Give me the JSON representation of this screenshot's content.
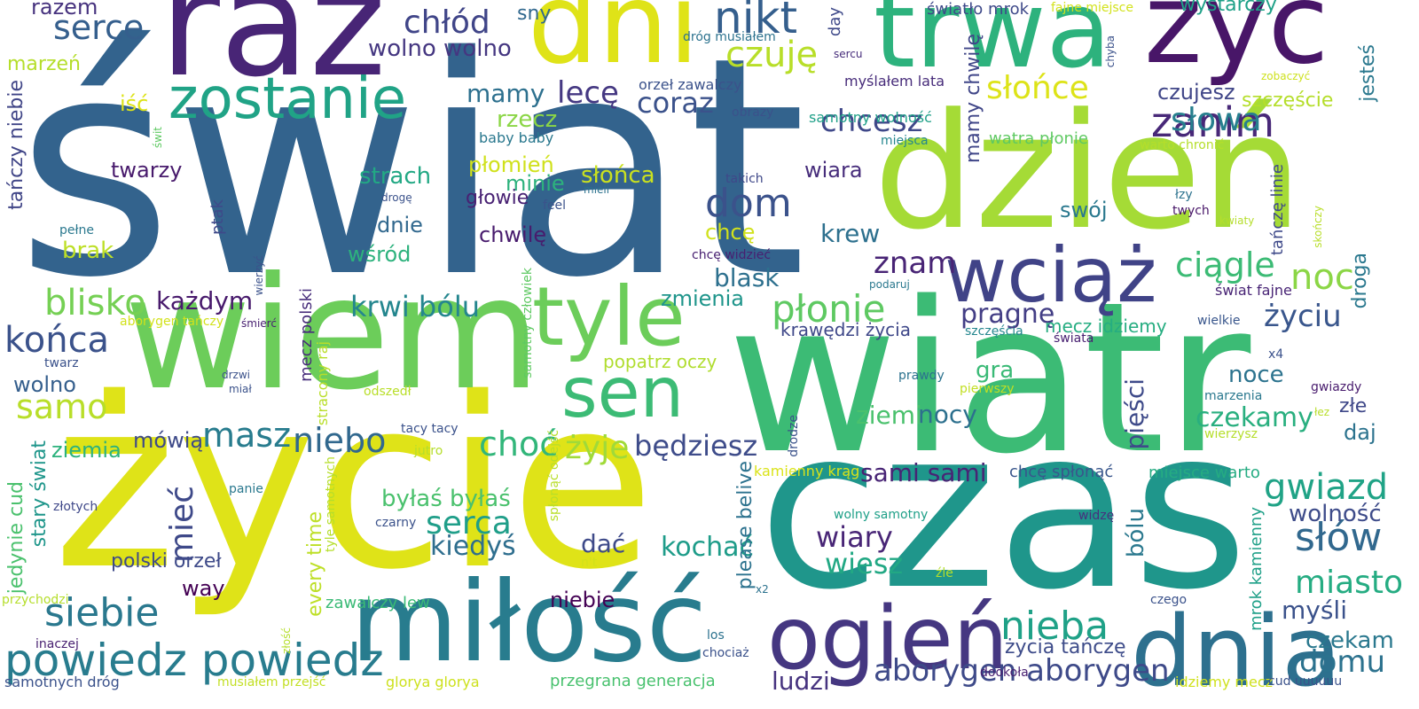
{
  "words": [
    {
      "text": "świat",
      "color": "#33638d"
    },
    {
      "text": "wiatr",
      "color": "#3cbb75"
    },
    {
      "text": "życie",
      "color": "#dfe318"
    },
    {
      "text": "czas",
      "color": "#1f968b"
    },
    {
      "text": "dzień",
      "color": "#a5db36"
    },
    {
      "text": "wiem",
      "color": "#6ccd5a"
    },
    {
      "text": "raz",
      "color": "#482576"
    },
    {
      "text": "dni",
      "color": "#dfe318"
    },
    {
      "text": "trwa",
      "color": "#2db27d"
    },
    {
      "text": "żyć",
      "color": "#481668"
    },
    {
      "text": "miłość",
      "color": "#287c8e"
    },
    {
      "text": "zostanie",
      "color": "#20a386"
    },
    {
      "text": "wciąż",
      "color": "#404387"
    },
    {
      "text": "tyle",
      "color": "#6ccd5a"
    },
    {
      "text": "ogień",
      "color": "#453781"
    },
    {
      "text": "dnia",
      "color": "#2d708e"
    },
    {
      "text": "sen",
      "color": "#3cbb75"
    },
    {
      "text": "powiedz powiedz",
      "color": "#287c8e"
    },
    {
      "text": "nikt",
      "color": "#355f8d"
    },
    {
      "text": "serce",
      "color": "#355f8d"
    },
    {
      "text": "czuję",
      "color": "#b8de29"
    },
    {
      "text": "dom",
      "color": "#3b528b"
    },
    {
      "text": "zanim",
      "color": "#482878"
    },
    {
      "text": "noc",
      "color": "#8bd646"
    },
    {
      "text": "płonie",
      "color": "#5ec962"
    },
    {
      "text": "siebie",
      "color": "#2a788e"
    },
    {
      "text": "niebo",
      "color": "#31688e"
    },
    {
      "text": "masz",
      "color": "#287c8e"
    },
    {
      "text": "samo",
      "color": "#b8de29"
    },
    {
      "text": "końca",
      "color": "#3b528b"
    },
    {
      "text": "blisko",
      "color": "#75d054"
    },
    {
      "text": "krwi bólu",
      "color": "#24868e"
    },
    {
      "text": "choć",
      "color": "#32b67a"
    },
    {
      "text": "gwiazd",
      "color": "#20a386"
    },
    {
      "text": "słów",
      "color": "#31688e"
    },
    {
      "text": "nieba",
      "color": "#1fa187"
    },
    {
      "text": "aborygen aborygen",
      "color": "#3e4a89"
    },
    {
      "text": "miasto",
      "color": "#25ac82"
    },
    {
      "text": "domu",
      "color": "#2c728e"
    },
    {
      "text": "ciągle",
      "color": "#3cbb75"
    },
    {
      "text": "słowa",
      "color": "#277f8e"
    },
    {
      "text": "słońce",
      "color": "#dde318"
    },
    {
      "text": "chcesz",
      "color": "#3f4889"
    },
    {
      "text": "coraz",
      "color": "#3b528b"
    },
    {
      "text": "lecę",
      "color": "#453882"
    },
    {
      "text": "chłód",
      "color": "#404588"
    },
    {
      "text": "mamy",
      "color": "#2d708e"
    },
    {
      "text": "wolno wolno",
      "color": "#453781"
    },
    {
      "text": "zmienia",
      "color": "#1f958b"
    },
    {
      "text": "blask",
      "color": "#2d708e"
    },
    {
      "text": "znam",
      "color": "#482475"
    },
    {
      "text": "krew",
      "color": "#2d708e"
    },
    {
      "text": "życiu",
      "color": "#39568c"
    },
    {
      "text": "pragnę",
      "color": "#433e85"
    },
    {
      "text": "wiary",
      "color": "#482576"
    },
    {
      "text": "wiesz",
      "color": "#22a884"
    },
    {
      "text": "kochać",
      "color": "#1e9c89"
    },
    {
      "text": "serca",
      "color": "#1f9e89"
    },
    {
      "text": "kiedyś",
      "color": "#2e6e8e"
    },
    {
      "text": "mieć",
      "color": "#3e4989"
    },
    {
      "text": "będziesz",
      "color": "#3e4c8a"
    },
    {
      "text": "żyje",
      "color": "#a0da39"
    },
    {
      "text": "czekamy",
      "color": "#29af7f"
    },
    {
      "text": "wolność",
      "color": "#3e4c8a"
    },
    {
      "text": "myśli",
      "color": "#3b528b"
    },
    {
      "text": "czekam",
      "color": "#2a788e"
    },
    {
      "text": "nocy",
      "color": "#2d708e"
    },
    {
      "text": "ziemi",
      "color": "#4ac16d"
    },
    {
      "text": "sami sami",
      "color": "#482475"
    },
    {
      "text": "ludzi",
      "color": "#46337f"
    },
    {
      "text": "niebie",
      "color": "#440154"
    },
    {
      "text": "dać",
      "color": "#3e4a89"
    },
    {
      "text": "byłaś byłaś",
      "color": "#4ac16d"
    },
    {
      "text": "way",
      "color": "#440154"
    },
    {
      "text": "polski orzeł",
      "color": "#3e4a89"
    },
    {
      "text": "mówią",
      "color": "#3e4a89"
    },
    {
      "text": "ziemia",
      "color": "#2db27d"
    },
    {
      "text": "każdym",
      "color": "#481a6c"
    },
    {
      "text": "wolno",
      "color": "#355f8d"
    },
    {
      "text": "brak",
      "color": "#bddf26"
    },
    {
      "text": "dnie",
      "color": "#31688e"
    },
    {
      "text": "strach",
      "color": "#22a884"
    },
    {
      "text": "twarzy",
      "color": "#481a6c"
    },
    {
      "text": "wśród",
      "color": "#2db27d"
    },
    {
      "text": "chwilę",
      "color": "#481b6d"
    },
    {
      "text": "głowie",
      "color": "#482173"
    },
    {
      "text": "płomień",
      "color": "#d0e11c"
    },
    {
      "text": "minie",
      "color": "#2db27d"
    },
    {
      "text": "słońca",
      "color": "#cae11f"
    },
    {
      "text": "rzecz",
      "color": "#8bd646"
    },
    {
      "text": "wiara",
      "color": "#472d7b"
    },
    {
      "text": "chcę",
      "color": "#d0e11c"
    },
    {
      "text": "swój",
      "color": "#2a788e"
    },
    {
      "text": "gra",
      "color": "#3aba76"
    },
    {
      "text": "noce",
      "color": "#2c738e"
    },
    {
      "text": "daj",
      "color": "#2c738e"
    },
    {
      "text": "złe",
      "color": "#3f4889"
    },
    {
      "text": "szczęście",
      "color": "#b5de2b"
    },
    {
      "text": "czujesz",
      "color": "#404688"
    },
    {
      "text": "wystarczy",
      "color": "#1fa188"
    },
    {
      "text": "iść",
      "color": "#dde318"
    },
    {
      "text": "razem",
      "color": "#46327e"
    },
    {
      "text": "sny",
      "color": "#31688e"
    },
    {
      "text": "marzeń",
      "color": "#b5de2b"
    },
    {
      "text": "popatrz oczy",
      "color": "#b0dd2f"
    },
    {
      "text": "krawędzi życia",
      "color": "#3f4889"
    },
    {
      "text": "mecz idziemy",
      "color": "#26ad81"
    },
    {
      "text": "życia tańczę",
      "color": "#3e4c8a"
    },
    {
      "text": "glorya glorya",
      "color": "#cde11d"
    },
    {
      "text": "przegrana generacja",
      "color": "#48c16e"
    },
    {
      "text": "zawalczy lew",
      "color": "#3aba76"
    },
    {
      "text": "chcę spłonąć",
      "color": "#39568c"
    },
    {
      "text": "miejsce warto",
      "color": "#25ac82"
    },
    {
      "text": "idziemy mecz",
      "color": "#cfe11c"
    },
    {
      "text": "samotnych dróg",
      "color": "#3b528b"
    },
    {
      "text": "musiałem przejść",
      "color": "#c2df23"
    },
    {
      "text": "kamienny krąg",
      "color": "#dae319"
    },
    {
      "text": "światło mrok",
      "color": "#3e4989"
    },
    {
      "text": "fajne miejsce",
      "color": "#d2e21b"
    },
    {
      "text": "dróg musiałem",
      "color": "#2c728e"
    },
    {
      "text": "orzeł zawalczy",
      "color": "#3b528b"
    },
    {
      "text": "myślałem lata",
      "color": "#472c7a"
    },
    {
      "text": "samotny wolność",
      "color": "#1fa088"
    },
    {
      "text": "watra płonie",
      "color": "#5ec962"
    },
    {
      "text": "warto chronić",
      "color": "#b5de2b"
    },
    {
      "text": "baby baby",
      "color": "#2a788e"
    },
    {
      "text": "zobaczyć",
      "color": "#cde11d"
    },
    {
      "text": "sercu",
      "color": "#472d7b"
    },
    {
      "text": "obrazy",
      "color": "#3b528b"
    },
    {
      "text": "miejsca",
      "color": "#24868e"
    },
    {
      "text": "takich",
      "color": "#3f4889"
    },
    {
      "text": "mieli",
      "color": "#2c728e"
    },
    {
      "text": "feel",
      "color": "#3b528b"
    },
    {
      "text": "drogę",
      "color": "#3b528b"
    },
    {
      "text": "pełne",
      "color": "#2a788e"
    },
    {
      "text": "łzy",
      "color": "#2c728e"
    },
    {
      "text": "twych",
      "color": "#481668"
    },
    {
      "text": "kwiaty",
      "color": "#b5de2b"
    },
    {
      "text": "chcę widzieć",
      "color": "#482071"
    },
    {
      "text": "podaruj",
      "color": "#2a788e"
    },
    {
      "text": "świat fajne",
      "color": "#482475"
    },
    {
      "text": "wielkie",
      "color": "#39568c"
    },
    {
      "text": "szczęścia",
      "color": "#24868e"
    },
    {
      "text": "świata",
      "color": "#482071"
    },
    {
      "text": "x4",
      "color": "#3b528b"
    },
    {
      "text": "prawdy",
      "color": "#2c728e"
    },
    {
      "text": "pierwszy",
      "color": "#c2df23"
    },
    {
      "text": "marzenia",
      "color": "#2a788e"
    },
    {
      "text": "gwiazdy",
      "color": "#481b6d"
    },
    {
      "text": "łez",
      "color": "#b8de29"
    },
    {
      "text": "wierzysz",
      "color": "#b5de2b"
    },
    {
      "text": "odszedł",
      "color": "#b8de29"
    },
    {
      "text": "tacy tacy",
      "color": "#3b528b"
    },
    {
      "text": "jutro",
      "color": "#b5de2b"
    },
    {
      "text": "czarny",
      "color": "#3b528b"
    },
    {
      "text": "wolny samotny",
      "color": "#1fa088"
    },
    {
      "text": "widzę",
      "color": "#46327e"
    },
    {
      "text": "źle",
      "color": "#b5de2b"
    },
    {
      "text": "czego",
      "color": "#3b528b"
    },
    {
      "text": "los",
      "color": "#2c728e"
    },
    {
      "text": "chociaż",
      "color": "#3b528b"
    },
    {
      "text": "dookoła",
      "color": "#482071"
    },
    {
      "text": "cud uuuuuu",
      "color": "#3b528b"
    },
    {
      "text": "x2",
      "color": "#2c728e"
    },
    {
      "text": "n't",
      "color": "#d2e21b"
    },
    {
      "text": "panie",
      "color": "#2a788e"
    },
    {
      "text": "złotych",
      "color": "#3f4889"
    },
    {
      "text": "przychodzi",
      "color": "#b5de2b"
    },
    {
      "text": "inaczej",
      "color": "#482071"
    },
    {
      "text": "twarz",
      "color": "#3b528b"
    },
    {
      "text": "drzwi",
      "color": "#3b528b"
    },
    {
      "text": "miał",
      "color": "#3b528b"
    },
    {
      "text": "śmierć",
      "color": "#482071"
    },
    {
      "text": "aborygen tańczy",
      "color": "#d2e21b"
    },
    {
      "text": "świt",
      "color": "#5ec962"
    },
    {
      "text": "tańczy niebie",
      "color": "#404587"
    },
    {
      "text": "jedynie cud",
      "color": "#4ac16d"
    },
    {
      "text": "stary świat",
      "color": "#1f968b"
    },
    {
      "text": "mecz polski",
      "color": "#472d7b"
    },
    {
      "text": "stracony raj",
      "color": "#b8de29"
    },
    {
      "text": "every time",
      "color": "#bddf26"
    },
    {
      "text": "tyle samotnych",
      "color": "#b5de2b"
    },
    {
      "text": "samotny człowiek",
      "color": "#5ec962"
    },
    {
      "text": "spłonąć odejść",
      "color": "#b8de29"
    },
    {
      "text": "ptak",
      "color": "#3e4989"
    },
    {
      "text": "wierzyć",
      "color": "#3b528b"
    },
    {
      "text": "złość",
      "color": "#b5de2b"
    },
    {
      "text": "day",
      "color": "#3e4989"
    },
    {
      "text": "mamy chwilę",
      "color": "#404688"
    },
    {
      "text": "please belive",
      "color": "#2c728e"
    },
    {
      "text": "drodze",
      "color": "#3b528b"
    },
    {
      "text": "bólu",
      "color": "#2a788e"
    },
    {
      "text": "pięści",
      "color": "#3e4a89"
    },
    {
      "text": "tańczę linie",
      "color": "#3e4989"
    },
    {
      "text": "droga",
      "color": "#2a788e"
    },
    {
      "text": "mrok kamienny",
      "color": "#1fa088"
    },
    {
      "text": "chyba",
      "color": "#3b528b"
    },
    {
      "text": "skończy",
      "color": "#b8de29"
    },
    {
      "text": "jesteś",
      "color": "#2a788e"
    }
  ]
}
